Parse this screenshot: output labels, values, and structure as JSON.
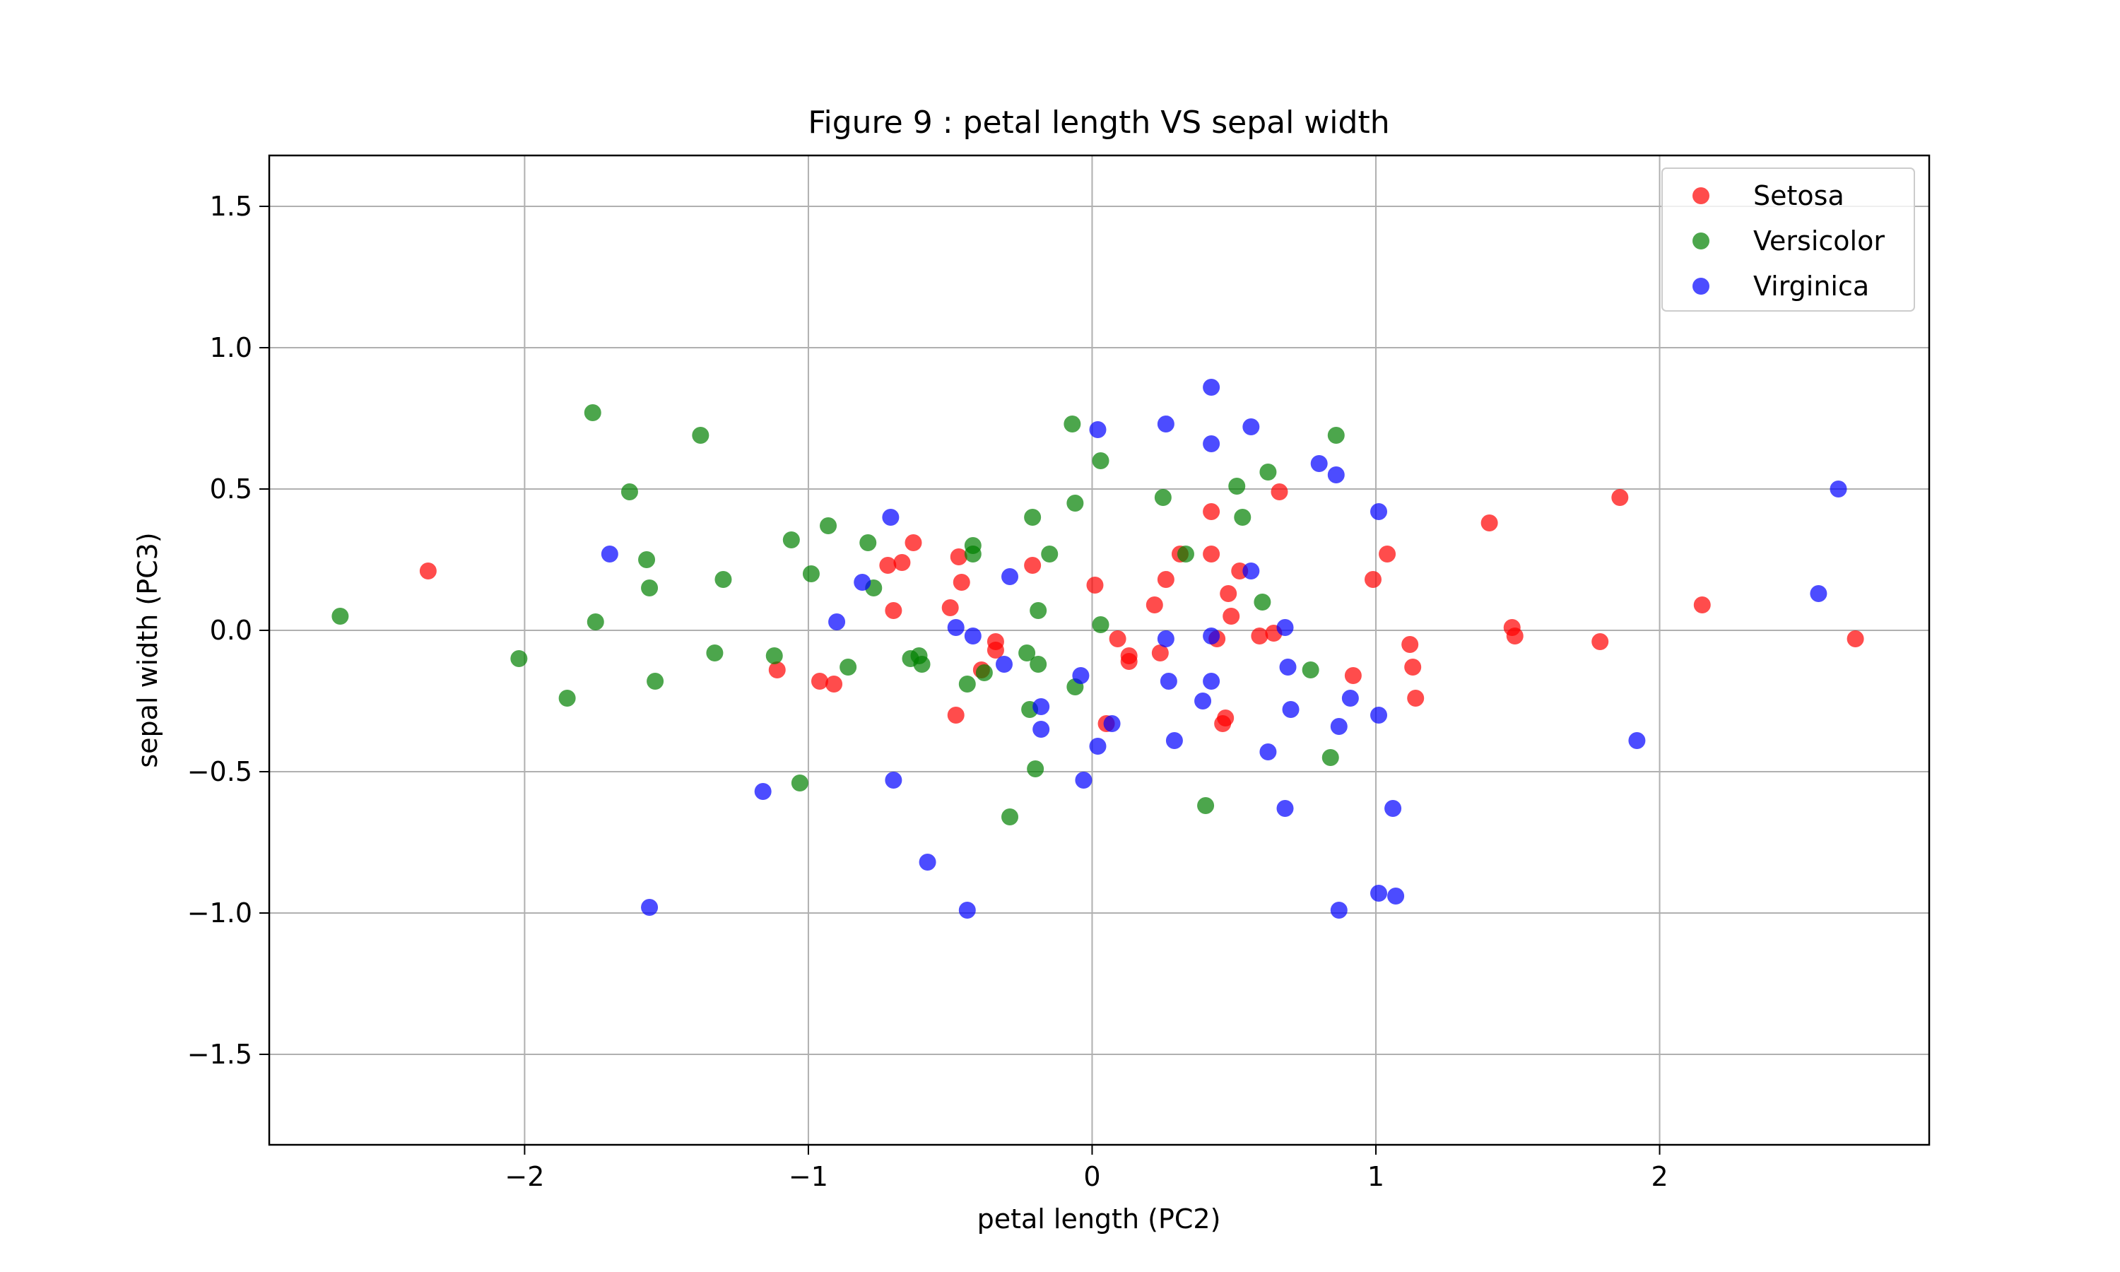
{
  "chart_data": {
    "type": "scatter",
    "title": "Figure 9 : petal length VS sepal width",
    "xlabel": "petal length (PC2)",
    "ylabel": "sepal width (PC3)",
    "xlim": [
      -2.9,
      2.95
    ],
    "ylim": [
      -1.82,
      1.68
    ],
    "xticks": [
      -2,
      -1,
      0,
      1,
      2
    ],
    "xtick_labels": [
      "−2",
      "−1",
      "0",
      "1",
      "2"
    ],
    "yticks": [
      -1.5,
      -1.0,
      -0.5,
      0.0,
      0.5,
      1.0,
      1.5
    ],
    "ytick_labels": [
      "−1.5",
      "−1.0",
      "−0.5",
      "0.0",
      "0.5",
      "1.0",
      "1.5"
    ],
    "grid": true,
    "legend_position": "top-right",
    "series": [
      {
        "name": "Setosa",
        "color": "#ff0000",
        "points": [
          [
            -2.34,
            0.21
          ],
          [
            -1.11,
            -0.14
          ],
          [
            -0.96,
            -0.18
          ],
          [
            -0.91,
            -0.19
          ],
          [
            -0.72,
            0.23
          ],
          [
            -0.7,
            0.07
          ],
          [
            -0.67,
            0.24
          ],
          [
            -0.63,
            0.31
          ],
          [
            -0.5,
            0.08
          ],
          [
            -0.47,
            0.26
          ],
          [
            -0.46,
            0.17
          ],
          [
            -0.48,
            -0.3
          ],
          [
            -0.39,
            -0.14
          ],
          [
            -0.34,
            -0.04
          ],
          [
            -0.34,
            -0.07
          ],
          [
            -0.21,
            0.23
          ],
          [
            0.01,
            0.16
          ],
          [
            0.09,
            -0.03
          ],
          [
            0.13,
            -0.09
          ],
          [
            0.13,
            -0.11
          ],
          [
            0.05,
            -0.33
          ],
          [
            0.22,
            0.09
          ],
          [
            0.24,
            -0.08
          ],
          [
            0.26,
            0.18
          ],
          [
            0.31,
            0.27
          ],
          [
            0.42,
            0.42
          ],
          [
            0.42,
            0.27
          ],
          [
            0.44,
            -0.03
          ],
          [
            0.47,
            -0.31
          ],
          [
            0.46,
            -0.33
          ],
          [
            0.48,
            0.13
          ],
          [
            0.49,
            0.05
          ],
          [
            0.52,
            0.21
          ],
          [
            0.59,
            -0.02
          ],
          [
            0.64,
            -0.01
          ],
          [
            0.66,
            0.49
          ],
          [
            0.92,
            -0.16
          ],
          [
            0.99,
            0.18
          ],
          [
            1.04,
            0.27
          ],
          [
            1.12,
            -0.05
          ],
          [
            1.13,
            -0.13
          ],
          [
            1.14,
            -0.24
          ],
          [
            1.4,
            0.38
          ],
          [
            1.48,
            0.01
          ],
          [
            1.49,
            -0.02
          ],
          [
            1.79,
            -0.04
          ],
          [
            1.86,
            0.47
          ],
          [
            2.15,
            0.09
          ],
          [
            2.69,
            -0.03
          ]
        ]
      },
      {
        "name": "Versicolor",
        "color": "#008000",
        "points": [
          [
            -2.65,
            0.05
          ],
          [
            -2.02,
            -0.1
          ],
          [
            -1.85,
            -0.24
          ],
          [
            -1.76,
            0.77
          ],
          [
            -1.75,
            0.03
          ],
          [
            -1.63,
            0.49
          ],
          [
            -1.57,
            0.25
          ],
          [
            -1.56,
            0.15
          ],
          [
            -1.54,
            -0.18
          ],
          [
            -1.38,
            0.69
          ],
          [
            -1.33,
            -0.08
          ],
          [
            -1.3,
            0.18
          ],
          [
            -1.12,
            -0.09
          ],
          [
            -1.06,
            0.32
          ],
          [
            -1.03,
            -0.54
          ],
          [
            -0.99,
            0.2
          ],
          [
            -0.93,
            0.37
          ],
          [
            -0.86,
            -0.13
          ],
          [
            -0.79,
            0.31
          ],
          [
            -0.77,
            0.15
          ],
          [
            -0.64,
            -0.1
          ],
          [
            -0.61,
            -0.09
          ],
          [
            -0.6,
            -0.12
          ],
          [
            -0.44,
            -0.19
          ],
          [
            -0.42,
            0.3
          ],
          [
            -0.42,
            0.27
          ],
          [
            -0.38,
            -0.15
          ],
          [
            -0.29,
            -0.66
          ],
          [
            -0.23,
            -0.08
          ],
          [
            -0.22,
            -0.28
          ],
          [
            -0.21,
            0.4
          ],
          [
            -0.19,
            0.07
          ],
          [
            -0.19,
            -0.12
          ],
          [
            -0.2,
            -0.49
          ],
          [
            -0.15,
            0.27
          ],
          [
            -0.07,
            0.73
          ],
          [
            -0.06,
            0.45
          ],
          [
            -0.06,
            -0.2
          ],
          [
            0.03,
            0.6
          ],
          [
            0.03,
            0.02
          ],
          [
            0.25,
            0.47
          ],
          [
            0.33,
            0.27
          ],
          [
            0.4,
            -0.62
          ],
          [
            0.51,
            0.51
          ],
          [
            0.53,
            0.4
          ],
          [
            0.6,
            0.1
          ],
          [
            0.62,
            0.56
          ],
          [
            0.77,
            -0.14
          ],
          [
            0.84,
            -0.45
          ],
          [
            0.86,
            0.69
          ]
        ]
      },
      {
        "name": "Virginica",
        "color": "#0000ff",
        "points": [
          [
            -1.7,
            0.27
          ],
          [
            -1.56,
            -0.98
          ],
          [
            -1.16,
            -0.57
          ],
          [
            -0.9,
            0.03
          ],
          [
            -0.81,
            0.17
          ],
          [
            -0.71,
            0.4
          ],
          [
            -0.7,
            -0.53
          ],
          [
            -0.58,
            -0.82
          ],
          [
            -0.48,
            0.01
          ],
          [
            -0.44,
            -0.99
          ],
          [
            -0.42,
            -0.02
          ],
          [
            -0.31,
            -0.12
          ],
          [
            -0.29,
            0.19
          ],
          [
            -0.18,
            -0.27
          ],
          [
            -0.18,
            -0.35
          ],
          [
            -0.04,
            -0.16
          ],
          [
            -0.03,
            -0.53
          ],
          [
            0.02,
            0.71
          ],
          [
            0.02,
            -0.41
          ],
          [
            0.07,
            -0.33
          ],
          [
            0.26,
            0.73
          ],
          [
            0.26,
            -0.03
          ],
          [
            0.27,
            -0.18
          ],
          [
            0.29,
            -0.39
          ],
          [
            0.39,
            -0.25
          ],
          [
            0.42,
            0.86
          ],
          [
            0.42,
            0.66
          ],
          [
            0.42,
            -0.02
          ],
          [
            0.42,
            -0.18
          ],
          [
            0.56,
            0.72
          ],
          [
            0.56,
            0.21
          ],
          [
            0.62,
            -0.43
          ],
          [
            0.68,
            0.01
          ],
          [
            0.68,
            -0.63
          ],
          [
            0.69,
            -0.13
          ],
          [
            0.7,
            -0.28
          ],
          [
            0.8,
            0.59
          ],
          [
            0.86,
            0.55
          ],
          [
            0.87,
            -0.34
          ],
          [
            0.87,
            -0.99
          ],
          [
            0.91,
            -0.24
          ],
          [
            1.01,
            0.42
          ],
          [
            1.01,
            -0.3
          ],
          [
            1.01,
            -0.93
          ],
          [
            1.06,
            -0.63
          ],
          [
            1.07,
            -0.94
          ],
          [
            1.92,
            -0.39
          ],
          [
            2.56,
            0.13
          ],
          [
            2.63,
            0.5
          ]
        ]
      }
    ]
  }
}
